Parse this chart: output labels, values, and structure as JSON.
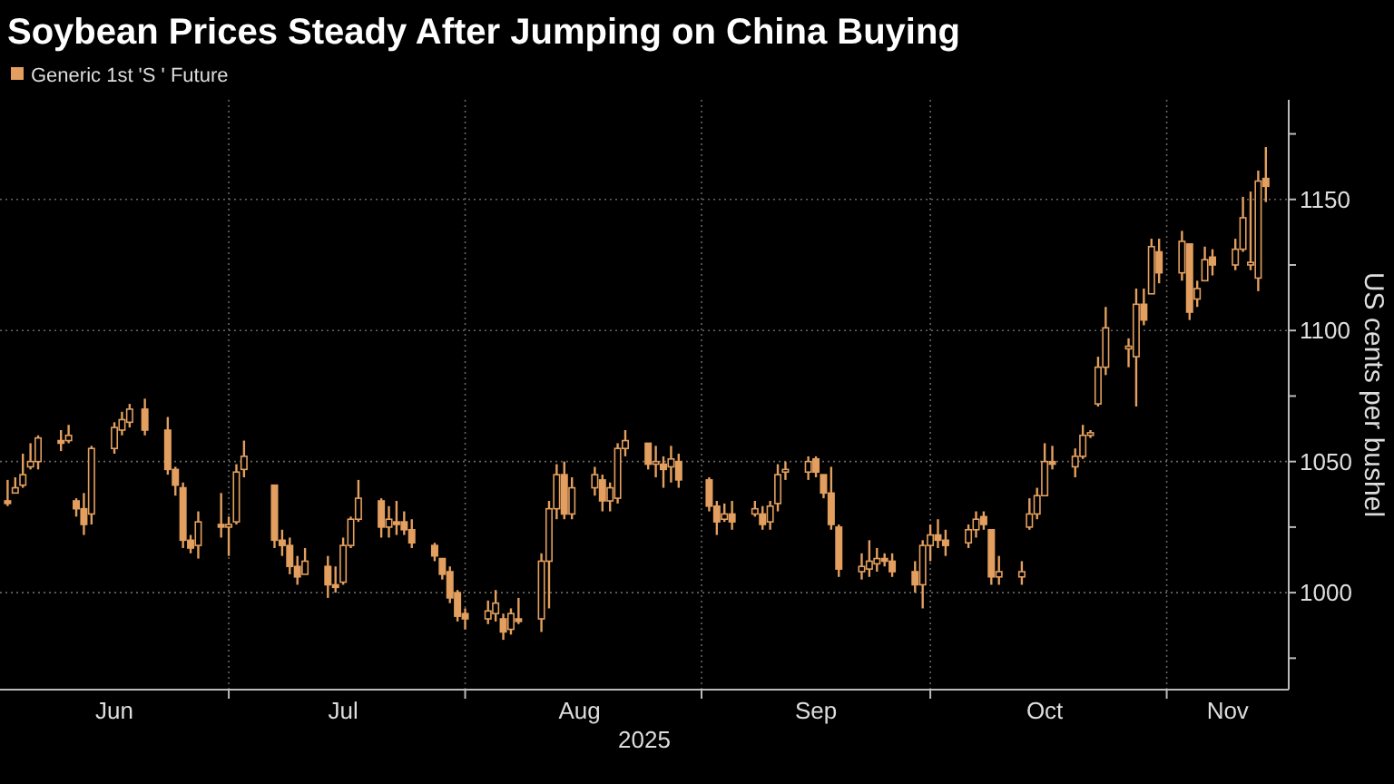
{
  "chart_data": {
    "type": "candlestick",
    "title": "Soybean Prices Steady After Jumping on China Buying",
    "xlabel": "2025",
    "ylabel": "US cents per bushel",
    "series": [
      {
        "name": "Generic 1st 'S ' Future",
        "color": "#e39f5f",
        "x": [
          "2025-06-02",
          "2025-06-03",
          "2025-06-04",
          "2025-06-05",
          "2025-06-06",
          "2025-06-09",
          "2025-06-10",
          "2025-06-11",
          "2025-06-12",
          "2025-06-13",
          "2025-06-16",
          "2025-06-17",
          "2025-06-18",
          "2025-06-20",
          "2025-06-23",
          "2025-06-24",
          "2025-06-25",
          "2025-06-26",
          "2025-06-27",
          "2025-06-30",
          "2025-07-01",
          "2025-07-02",
          "2025-07-03",
          "2025-07-07",
          "2025-07-08",
          "2025-07-09",
          "2025-07-10",
          "2025-07-11",
          "2025-07-14",
          "2025-07-15",
          "2025-07-16",
          "2025-07-17",
          "2025-07-18",
          "2025-07-21",
          "2025-07-22",
          "2025-07-23",
          "2025-07-24",
          "2025-07-25",
          "2025-07-28",
          "2025-07-29",
          "2025-07-30",
          "2025-07-31",
          "2025-08-01",
          "2025-08-04",
          "2025-08-05",
          "2025-08-06",
          "2025-08-07",
          "2025-08-08",
          "2025-08-11",
          "2025-08-12",
          "2025-08-13",
          "2025-08-14",
          "2025-08-15",
          "2025-08-18",
          "2025-08-19",
          "2025-08-20",
          "2025-08-21",
          "2025-08-22",
          "2025-08-25",
          "2025-08-26",
          "2025-08-27",
          "2025-08-28",
          "2025-08-29",
          "2025-09-02",
          "2025-09-03",
          "2025-09-04",
          "2025-09-05",
          "2025-09-08",
          "2025-09-09",
          "2025-09-10",
          "2025-09-11",
          "2025-09-12",
          "2025-09-15",
          "2025-09-16",
          "2025-09-17",
          "2025-09-18",
          "2025-09-19",
          "2025-09-22",
          "2025-09-23",
          "2025-09-24",
          "2025-09-25",
          "2025-09-26",
          "2025-09-29",
          "2025-09-30",
          "2025-10-01",
          "2025-10-02",
          "2025-10-03",
          "2025-10-06",
          "2025-10-07",
          "2025-10-08",
          "2025-10-09",
          "2025-10-10",
          "2025-10-13",
          "2025-10-14",
          "2025-10-15",
          "2025-10-16",
          "2025-10-17",
          "2025-10-20",
          "2025-10-21",
          "2025-10-22",
          "2025-10-23",
          "2025-10-24",
          "2025-10-27",
          "2025-10-28",
          "2025-10-29",
          "2025-10-30",
          "2025-10-31",
          "2025-11-03",
          "2025-11-04",
          "2025-11-05",
          "2025-11-06",
          "2025-11-07",
          "2025-11-10",
          "2025-11-11",
          "2025-11-12",
          "2025-11-13",
          "2025-11-14"
        ],
        "ohlc": [
          [
            1035,
            1043,
            1033,
            1034
          ],
          [
            1038,
            1044,
            1038,
            1040
          ],
          [
            1041,
            1053,
            1040,
            1045
          ],
          [
            1048,
            1057,
            1047,
            1050
          ],
          [
            1050,
            1060,
            1047,
            1059
          ],
          [
            1058,
            1062,
            1054,
            1057
          ],
          [
            1058,
            1064,
            1057,
            1060
          ],
          [
            1035,
            1036,
            1029,
            1032
          ],
          [
            1032,
            1038,
            1022,
            1026
          ],
          [
            1030,
            1056,
            1026,
            1055
          ],
          [
            1055,
            1065,
            1053,
            1063
          ],
          [
            1062,
            1069,
            1060,
            1066
          ],
          [
            1065,
            1072,
            1063,
            1070
          ],
          [
            1070,
            1074,
            1060,
            1062
          ],
          [
            1062,
            1067,
            1045,
            1047
          ],
          [
            1047,
            1048,
            1037,
            1041
          ],
          [
            1040,
            1042,
            1017,
            1020
          ],
          [
            1020,
            1022,
            1015,
            1017
          ],
          [
            1018,
            1031,
            1013,
            1027
          ],
          [
            1026,
            1038,
            1021,
            1025
          ],
          [
            1025,
            1029,
            1014,
            1026
          ],
          [
            1027,
            1049,
            1026,
            1046
          ],
          [
            1047,
            1058,
            1044,
            1052
          ],
          [
            1041,
            1041,
            1017,
            1020
          ],
          [
            1020,
            1024,
            1014,
            1018
          ],
          [
            1018,
            1021,
            1007,
            1010
          ],
          [
            1010,
            1014,
            1003,
            1006
          ],
          [
            1007,
            1017,
            1007,
            1012
          ],
          [
            1010,
            1014,
            998,
            1003
          ],
          [
            1003,
            1010,
            1000,
            1002
          ],
          [
            1004,
            1021,
            1003,
            1018
          ],
          [
            1018,
            1029,
            1017,
            1028
          ],
          [
            1028,
            1043,
            1027,
            1036
          ],
          [
            1035,
            1036,
            1021,
            1025
          ],
          [
            1025,
            1033,
            1021,
            1028
          ],
          [
            1027,
            1035,
            1022,
            1026
          ],
          [
            1027,
            1031,
            1022,
            1024
          ],
          [
            1024,
            1028,
            1017,
            1019
          ],
          [
            1018,
            1019,
            1012,
            1014
          ],
          [
            1013,
            1013,
            1005,
            1007
          ],
          [
            1008,
            1010,
            996,
            998
          ],
          [
            1000,
            1001,
            989,
            991
          ],
          [
            992,
            994,
            986,
            990
          ],
          [
            990,
            997,
            988,
            993
          ],
          [
            992,
            1001,
            989,
            996
          ],
          [
            990,
            992,
            982,
            985
          ],
          [
            986,
            994,
            984,
            992
          ],
          [
            990,
            998,
            988,
            989
          ],
          [
            990,
            1015,
            985,
            1012
          ],
          [
            1012,
            1035,
            994,
            1032
          ],
          [
            1032,
            1049,
            1028,
            1045
          ],
          [
            1045,
            1050,
            1028,
            1030
          ],
          [
            1030,
            1044,
            1028,
            1040
          ],
          [
            1040,
            1048,
            1037,
            1045
          ],
          [
            1043,
            1045,
            1031,
            1035
          ],
          [
            1035,
            1042,
            1031,
            1040
          ],
          [
            1036,
            1057,
            1034,
            1055
          ],
          [
            1055,
            1062,
            1052,
            1058
          ],
          [
            1057,
            1057,
            1047,
            1049
          ],
          [
            1049,
            1056,
            1044,
            1050
          ],
          [
            1049,
            1052,
            1040,
            1047
          ],
          [
            1048,
            1056,
            1042,
            1051
          ],
          [
            1050,
            1053,
            1040,
            1043
          ],
          [
            1043,
            1044,
            1031,
            1033
          ],
          [
            1033,
            1035,
            1022,
            1027
          ],
          [
            1028,
            1034,
            1027,
            1030
          ],
          [
            1030,
            1035,
            1024,
            1027
          ],
          [
            1030,
            1035,
            1029,
            1032
          ],
          [
            1030,
            1033,
            1024,
            1026
          ],
          [
            1027,
            1035,
            1024,
            1033
          ],
          [
            1034,
            1049,
            1031,
            1045
          ],
          [
            1046,
            1050,
            1043,
            1047
          ],
          [
            1046,
            1052,
            1043,
            1050
          ],
          [
            1051,
            1052,
            1044,
            1046
          ],
          [
            1045,
            1045,
            1036,
            1038
          ],
          [
            1038,
            1048,
            1024,
            1026
          ],
          [
            1025,
            1026,
            1006,
            1009
          ],
          [
            1008,
            1015,
            1005,
            1010
          ],
          [
            1009,
            1020,
            1006,
            1012
          ],
          [
            1011,
            1017,
            1008,
            1013
          ],
          [
            1013,
            1015,
            1010,
            1012
          ],
          [
            1012,
            1015,
            1006,
            1008
          ],
          [
            1008,
            1012,
            1000,
            1003
          ],
          [
            1003,
            1020,
            994,
            1018
          ],
          [
            1018,
            1026,
            1012,
            1022
          ],
          [
            1022,
            1028,
            1017,
            1020
          ],
          [
            1020,
            1024,
            1014,
            1018
          ],
          [
            1019,
            1026,
            1017,
            1024
          ],
          [
            1024,
            1031,
            1021,
            1028
          ],
          [
            1029,
            1031,
            1024,
            1026
          ],
          [
            1024,
            1024,
            1003,
            1006
          ],
          [
            1006,
            1014,
            1003,
            1008
          ],
          [
            1006,
            1012,
            1003,
            1008
          ],
          [
            1025,
            1036,
            1024,
            1030
          ],
          [
            1030,
            1040,
            1028,
            1037
          ],
          [
            1037,
            1057,
            1037,
            1050
          ],
          [
            1050,
            1056,
            1047,
            1049
          ],
          [
            1048,
            1055,
            1044,
            1052
          ],
          [
            1052,
            1064,
            1051,
            1060
          ],
          [
            1060,
            1062,
            1059,
            1061
          ],
          [
            1072,
            1090,
            1071,
            1086
          ],
          [
            1086,
            1109,
            1083,
            1101
          ],
          [
            1093,
            1097,
            1086,
            1094
          ],
          [
            1090,
            1116,
            1071,
            1110
          ],
          [
            1110,
            1116,
            1102,
            1104
          ],
          [
            1114,
            1135,
            1114,
            1132
          ],
          [
            1130,
            1135,
            1118,
            1122
          ],
          [
            1122,
            1138,
            1119,
            1134
          ],
          [
            1133,
            1133,
            1104,
            1107
          ],
          [
            1112,
            1119,
            1109,
            1116
          ],
          [
            1119,
            1132,
            1119,
            1127
          ],
          [
            1128,
            1131,
            1121,
            1125
          ],
          [
            1125,
            1135,
            1123,
            1131
          ],
          [
            1131,
            1151,
            1130,
            1143
          ],
          [
            1125,
            1153,
            1123,
            1126
          ],
          [
            1120,
            1161,
            1115,
            1157
          ],
          [
            1158,
            1170,
            1149,
            1155
          ]
        ]
      }
    ],
    "xlim": [
      "2025-06-01",
      "2025-11-17"
    ],
    "xticks": [
      {
        "value": "2025-06-16",
        "label": "Jun"
      },
      {
        "value": "2025-07-01",
        "label": null
      },
      {
        "value": "2025-07-16",
        "label": "Jul"
      },
      {
        "value": "2025-08-01",
        "label": null
      },
      {
        "value": "2025-08-16",
        "label": "Aug"
      },
      {
        "value": "2025-09-01",
        "label": null
      },
      {
        "value": "2025-09-16",
        "label": "Sep"
      },
      {
        "value": "2025-10-01",
        "label": null
      },
      {
        "value": "2025-10-16",
        "label": "Oct"
      },
      {
        "value": "2025-11-01",
        "label": null
      },
      {
        "value": "2025-11-09",
        "label": "Nov"
      }
    ],
    "ylim": [
      963,
      1188
    ],
    "yticks": [
      {
        "value": 975,
        "label": null
      },
      1000,
      {
        "value": 1025,
        "label": null
      },
      1050,
      {
        "value": 1075,
        "label": null
      },
      1100,
      {
        "value": 1125,
        "label": null
      },
      1150,
      {
        "value": 1175,
        "label": null
      }
    ],
    "grid": true,
    "legend": "top left"
  }
}
